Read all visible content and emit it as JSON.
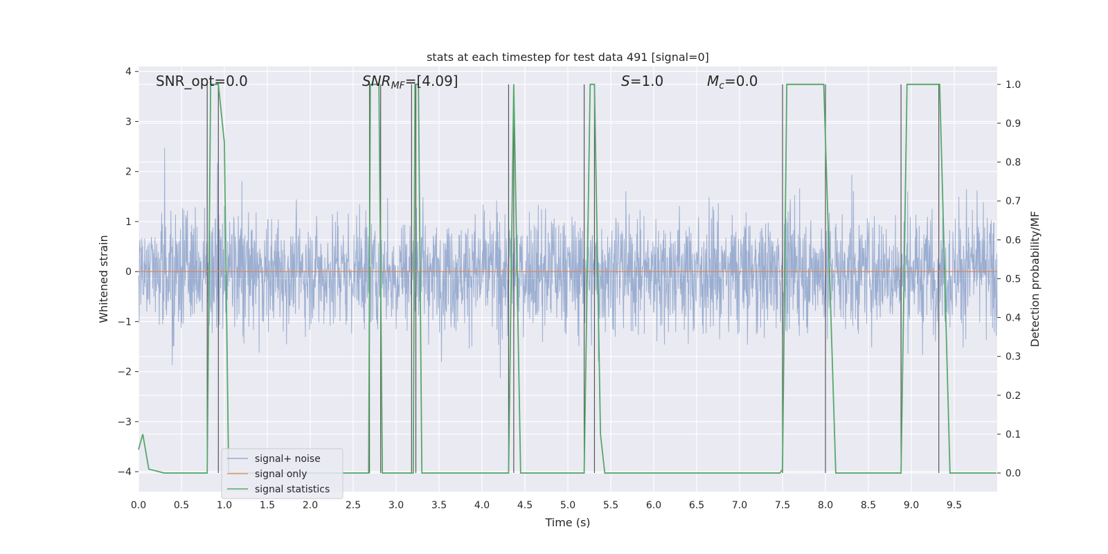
{
  "chart_data": {
    "type": "line",
    "title": "stats at each timestep for test data 491 [signal=0]",
    "xlabel": "Time (s)",
    "ylabel": "Whitened strain",
    "ylabel_right": "Detection probability/MF",
    "xlim": [
      0.0,
      10.0
    ],
    "ylim": [
      -4.4,
      4.1
    ],
    "ylim_right": [
      -0.048,
      1.046
    ],
    "x_ticks": [
      "0.0",
      "0.5",
      "1.0",
      "1.5",
      "2.0",
      "2.5",
      "3.0",
      "3.5",
      "4.0",
      "4.5",
      "5.0",
      "5.5",
      "6.0",
      "6.5",
      "7.0",
      "7.5",
      "8.0",
      "8.5",
      "9.0",
      "9.5"
    ],
    "y_ticks": [
      "−4",
      "−3",
      "−2",
      "−1",
      "0",
      "1",
      "2",
      "3",
      "4"
    ],
    "y_ticks_right": [
      "0.0",
      "0.1",
      "0.2",
      "0.3",
      "0.4",
      "0.5",
      "0.6",
      "0.7",
      "0.8",
      "0.9",
      "1.0"
    ],
    "grid": true,
    "legend_position": "lower-left",
    "annotations": {
      "snr_opt": "SNR_opt=0.0",
      "snr_mf_base": "SNR",
      "snr_mf_sub": "MF",
      "snr_mf_value": "=[4.09]",
      "s_label": "S",
      "s_value": "=1.0",
      "mc_label": "M",
      "mc_sub": "c",
      "mc_value": "=0.0"
    },
    "series": [
      {
        "name": "signal+ noise",
        "color": "#4c72b0",
        "description_stats": {
          "envelope_typical": [
            -1.5,
            1.5
          ],
          "peak_max": 3.7,
          "peak_min": -4.0
        }
      },
      {
        "name": "signal only",
        "color": "#dd8452",
        "x": [
          0.0,
          10.0
        ],
        "y": [
          0.0,
          0.0
        ]
      },
      {
        "name": "signal statistics",
        "color": "#55a868",
        "x": [
          0.0,
          0.05,
          0.12,
          0.3,
          0.8,
          0.84,
          0.88,
          0.93,
          1.0,
          1.05,
          1.3,
          2.0,
          2.68,
          2.7,
          2.74,
          2.8,
          2.84,
          2.9,
          3.2,
          3.22,
          3.26,
          3.3,
          3.4,
          4.31,
          4.37,
          4.45,
          4.6,
          5.0,
          5.1,
          5.19,
          5.26,
          5.31,
          5.38,
          5.43,
          6.0,
          7.47,
          7.5,
          7.55,
          7.98,
          8.12,
          8.88,
          8.95,
          9.33,
          9.45,
          9.99
        ],
        "y": [
          0.06,
          0.1,
          0.01,
          0.0,
          0.0,
          1.0,
          1.0,
          1.0,
          0.85,
          0.0,
          0.0,
          0.0,
          0.0,
          1.0,
          1.0,
          1.0,
          0.0,
          0.0,
          0.0,
          1.0,
          1.0,
          0.0,
          0.0,
          0.0,
          1.0,
          0.0,
          0.0,
          0.0,
          0.0,
          0.0,
          1.0,
          1.0,
          0.1,
          0.0,
          0.0,
          0.0,
          0.01,
          1.0,
          1.0,
          0.0,
          0.0,
          1.0,
          1.0,
          0.0,
          0.0
        ]
      }
    ],
    "vertical_markers_x": [
      0.8,
      0.93,
      2.69,
      2.82,
      3.18,
      3.23,
      4.31,
      4.37,
      5.19,
      5.31,
      7.5,
      8.0,
      8.88,
      9.32
    ]
  }
}
